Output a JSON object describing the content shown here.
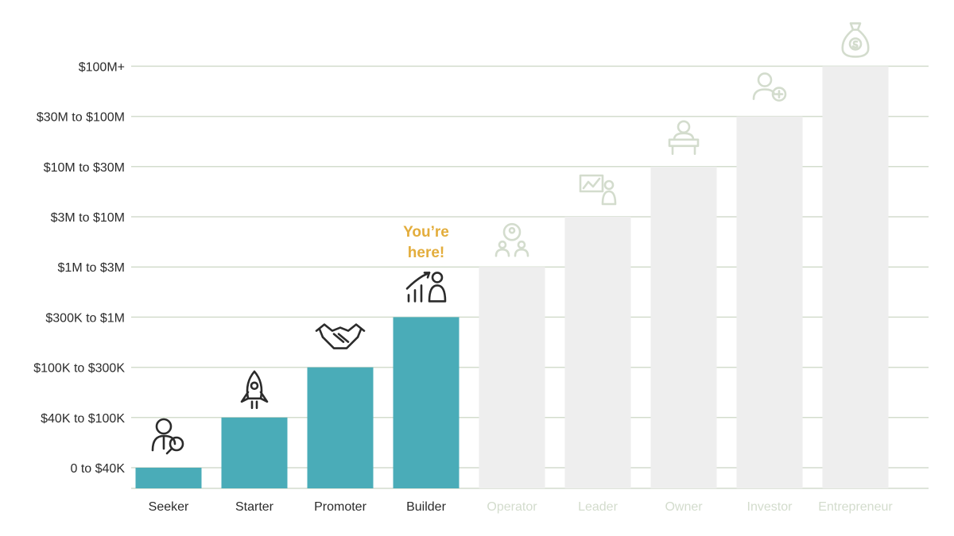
{
  "colors": {
    "active_bar": "#4aacb8",
    "inactive_bar": "#eeeeee",
    "inactive_label": "#d3dccd",
    "active_label": "#2b2b2b",
    "active_icon": "#2b2b2b",
    "inactive_icon": "#d3dccd",
    "gridline": "#d3dccd",
    "annotation": "#e3ad3c"
  },
  "chart_data": {
    "type": "bar",
    "title": "",
    "xlabel": "",
    "ylabel": "",
    "y_tick_labels": [
      "0 to $40K",
      "$40K to $100K",
      "$100K to $300K",
      "$300K to $1M",
      "$1M to $3M",
      "$3M to $10M",
      "$10M to $30M",
      "$30M to $100M",
      "$100M+"
    ],
    "ylim": [
      0,
      8.5
    ],
    "grid": true,
    "categories": [
      "Seeker",
      "Starter",
      "Promoter",
      "Builder",
      "Operator",
      "Leader",
      "Owner",
      "Investor",
      "Entrepreneur"
    ],
    "values": [
      0,
      1,
      2,
      3,
      4,
      5,
      6,
      7,
      8
    ],
    "active": [
      true,
      true,
      true,
      true,
      false,
      false,
      false,
      false,
      false
    ],
    "icons": [
      "seeker-icon",
      "rocket-icon",
      "handshake-icon",
      "growth-chart-icon",
      "team-network-icon",
      "presentation-icon",
      "desk-owner-icon",
      "add-user-icon",
      "money-bag-icon"
    ],
    "annotation": {
      "category": "Builder",
      "lines": [
        "You’re",
        "here!"
      ]
    }
  }
}
